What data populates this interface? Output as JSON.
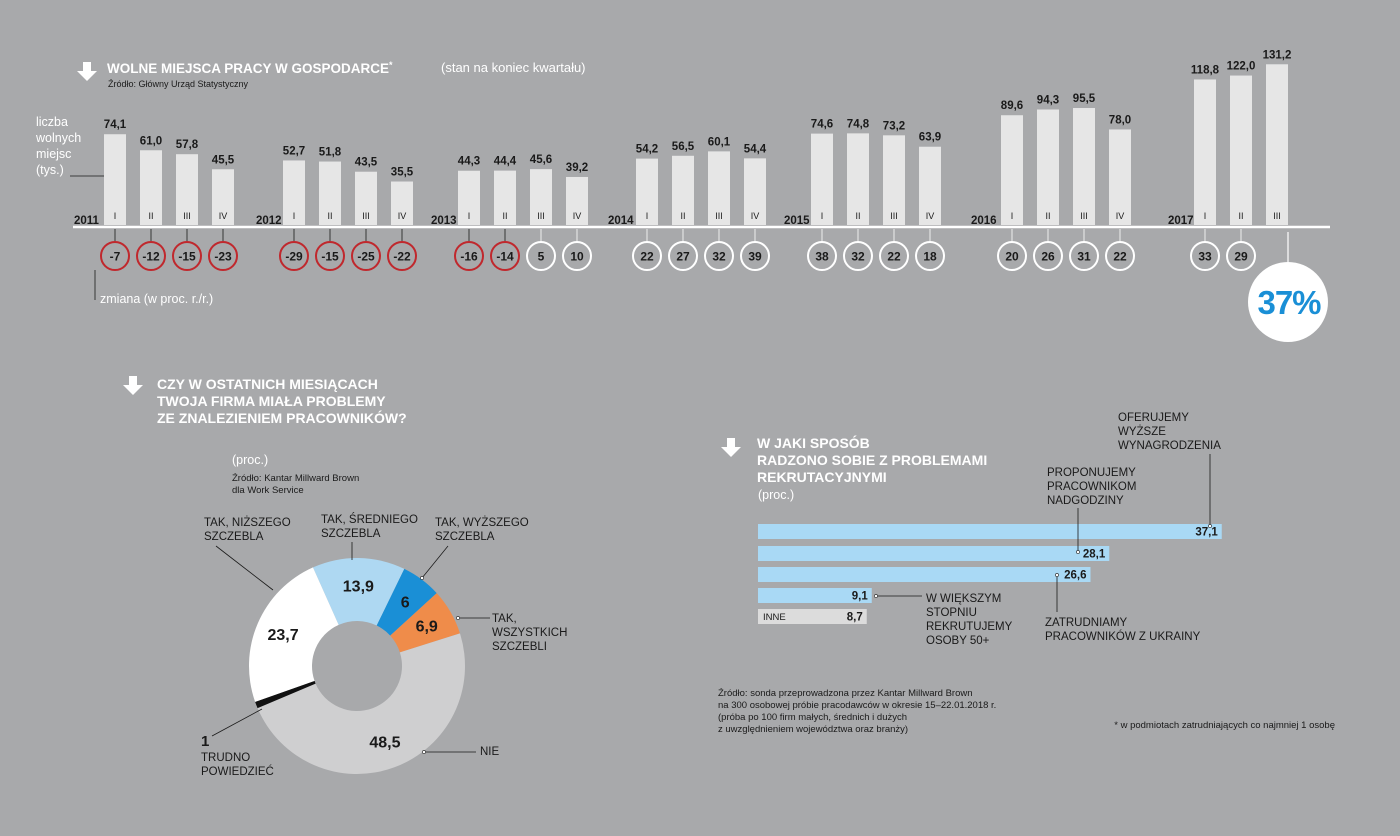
{
  "chart_data": [
    {
      "type": "bar",
      "title": "WOLNE MIEJSCA PRACY W GOSPODARCE",
      "title_mark": "*",
      "subtitle": "(stan na koniec kwartału)",
      "source": "Źródło: Główny Urząd Statystyczny",
      "ylabel_lines": [
        "liczba",
        "wolnych",
        "miejsc",
        "(tys.)"
      ],
      "change_label": "zmiana (w proc. r./r.)",
      "highlight_change": "37%",
      "ylim": [
        0,
        140
      ],
      "years": [
        {
          "year": "2011",
          "quarters": [
            "I",
            "II",
            "III",
            "IV"
          ],
          "values": [
            74.1,
            61.0,
            57.8,
            45.5
          ],
          "labels": [
            "74,1",
            "61,0",
            "57,8",
            "45,5"
          ],
          "changes": [
            -7,
            -12,
            -15,
            -23
          ],
          "change_labels": [
            "-7",
            "-12",
            "-15",
            "-23"
          ]
        },
        {
          "year": "2012",
          "quarters": [
            "I",
            "II",
            "III",
            "IV"
          ],
          "values": [
            52.7,
            51.8,
            43.5,
            35.5
          ],
          "labels": [
            "52,7",
            "51,8",
            "43,5",
            "35,5"
          ],
          "changes": [
            -29,
            -15,
            -25,
            -22
          ],
          "change_labels": [
            "-29",
            "-15",
            "-25",
            "-22"
          ]
        },
        {
          "year": "2013",
          "quarters": [
            "I",
            "II",
            "III",
            "IV"
          ],
          "values": [
            44.3,
            44.4,
            45.6,
            39.2
          ],
          "labels": [
            "44,3",
            "44,4",
            "45,6",
            "39,2"
          ],
          "changes": [
            -16,
            -14,
            5,
            10
          ],
          "change_labels": [
            "-16",
            "-14",
            "5",
            "10"
          ]
        },
        {
          "year": "2014",
          "quarters": [
            "I",
            "II",
            "III",
            "IV"
          ],
          "values": [
            54.2,
            56.5,
            60.1,
            54.4
          ],
          "labels": [
            "54,2",
            "56,5",
            "60,1",
            "54,4"
          ],
          "changes": [
            22,
            27,
            32,
            39
          ],
          "change_labels": [
            "22",
            "27",
            "32",
            "39"
          ]
        },
        {
          "year": "2015",
          "quarters": [
            "I",
            "II",
            "III",
            "IV"
          ],
          "values": [
            74.6,
            74.8,
            73.2,
            63.9
          ],
          "labels": [
            "74,6",
            "74,8",
            "73,2",
            "63,9"
          ],
          "changes": [
            38,
            32,
            22,
            18
          ],
          "change_labels": [
            "38",
            "32",
            "22",
            "18"
          ]
        },
        {
          "year": "2016",
          "quarters": [
            "I",
            "II",
            "III",
            "IV"
          ],
          "values": [
            89.6,
            94.3,
            95.5,
            78.0
          ],
          "labels": [
            "89,6",
            "94,3",
            "95,5",
            "78,0"
          ],
          "changes": [
            20,
            26,
            31,
            22
          ],
          "change_labels": [
            "20",
            "26",
            "31",
            "22"
          ]
        },
        {
          "year": "2017",
          "quarters": [
            "I",
            "II",
            "III"
          ],
          "values": [
            118.8,
            122.0,
            131.2
          ],
          "labels": [
            "118,8",
            "122,0",
            "131,2"
          ],
          "changes": [
            33,
            29,
            37
          ],
          "change_labels": [
            "33",
            "29",
            ""
          ]
        }
      ]
    },
    {
      "type": "pie",
      "title_lines": [
        "CZY W OSTATNICH MIESIĄCACH",
        "TWOJA FIRMA  MIAŁA PROBLEMY",
        "ZE ZNALEZIENIEM PRACOWNIKÓW?"
      ],
      "unit": "(proc.)",
      "source_lines": [
        "Źródło: Kantar Millward Brown",
        "dla Work Service"
      ],
      "slices": [
        {
          "name_lines": [
            "TAK, ŚREDNIEGO",
            "SZCZEBLA"
          ],
          "value": 13.9,
          "label": "13,9",
          "color": "#aed8f2"
        },
        {
          "name_lines": [
            "TAK, WYŻSZEGO",
            "SZCZEBLA"
          ],
          "value": 6,
          "label": "6",
          "color": "#1a8fd6"
        },
        {
          "name_lines": [
            "TAK,",
            "WSZYSTKICH",
            "SZCZEBLI"
          ],
          "value": 6.9,
          "label": "6,9",
          "color": "#ef8c4a"
        },
        {
          "name_lines": [
            "NIE"
          ],
          "value": 48.5,
          "label": "48,5",
          "color": "#cfcfd0"
        },
        {
          "name_lines": [
            "TRUDNO",
            "POWIEDZIEĆ"
          ],
          "value": 1,
          "label": "1",
          "color": "#111111"
        },
        {
          "name_lines": [
            "TAK, NIŻSZEGO",
            "SZCZEBLA"
          ],
          "value": 23.7,
          "label": "23,7",
          "color": "#ffffff"
        }
      ]
    },
    {
      "type": "bar",
      "orientation": "horizontal",
      "title_lines": [
        "W JAKI SPOSÓB",
        "RADZONO SOBIE Z PROBLEMAMI",
        "REKRUTACYJNYMI"
      ],
      "unit": "(proc.)",
      "bars": [
        {
          "name_lines": [
            "OFERUJEMY",
            "WYŻSZE",
            "WYNAGRODZENIA"
          ],
          "value": 37.1,
          "label": "37,1",
          "color": "#a9d9f5"
        },
        {
          "name_lines": [
            "PROPONUJEMY",
            "PRACOWNIKOM",
            "NADGODZINY"
          ],
          "value": 28.1,
          "label": "28,1",
          "color": "#a9d9f5"
        },
        {
          "name_lines": [
            "ZATRUDNIAMY",
            "PRACOWNIKÓW Z UKRAINY"
          ],
          "value": 26.6,
          "label": "26,6",
          "color": "#a9d9f5"
        },
        {
          "name_lines": [
            "W WIĘKSZYM",
            "STOPNIU",
            "REKRUTUJEMY",
            "OSOBY 50+"
          ],
          "value": 9.1,
          "label": "9,1",
          "color": "#a9d9f5"
        },
        {
          "name_lines": [
            "INNE"
          ],
          "value": 8.7,
          "label": "8,7",
          "color": "#dcdcdc"
        }
      ]
    }
  ],
  "footnotes": {
    "survey_lines": [
      "Źródło: sonda przeprowadzona przez Kantar Millward Brown",
      "na 300 osobowej próbie pracodawców w okresie 15–22.01.2018 r.",
      "(próba po 100 firm małych, średnich i dużych",
      "z uwzględnieniem województwa oraz branży)"
    ],
    "asterisk": "* w podmiotach zatrudniających co najmniej 1 osobę"
  },
  "colors": {
    "background": "#a8a9ab",
    "bar": "#e6e6e6",
    "negative_ring": "#c0282d",
    "positive_ring": "#ffffff",
    "accent_blue": "#1a8fd6"
  }
}
